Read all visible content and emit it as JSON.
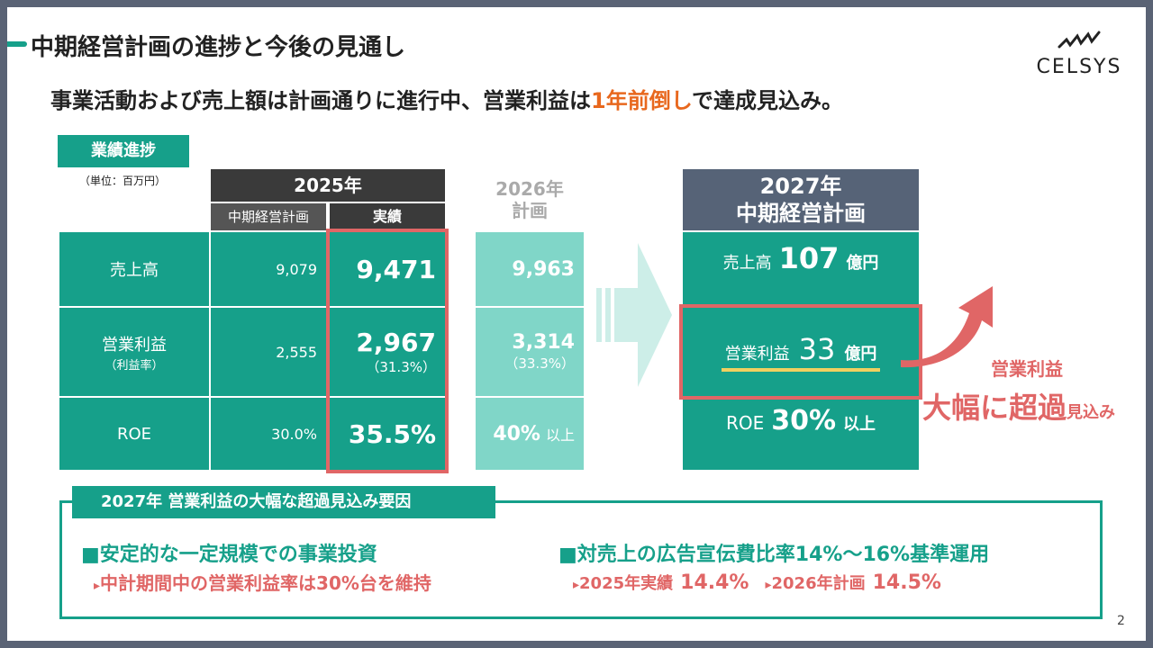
{
  "title": "中期経営計画の進捗と今後の見通し",
  "logo": "CELSYS",
  "subtitle": {
    "before": "事業活動および売上額は計画通りに進行中、営業利益は",
    "highlight": "1年前倒し",
    "after": "で達成見込み。"
  },
  "performance": {
    "label": "業績進捗",
    "unit": "（単位：百万円）",
    "year_2025": "2025年",
    "col_plan": "中期経営計画",
    "col_actual": "実績",
    "year_2026_line1": "2026年",
    "year_2026_line2": "計画",
    "rows": [
      {
        "label": "売上高",
        "sub": "",
        "plan": "9,079",
        "actual": "9,471",
        "actual_sub": "",
        "plan2026": "9,963",
        "plan2026_sub": ""
      },
      {
        "label": "営業利益",
        "sub": "（利益率）",
        "plan": "2,555",
        "actual": "2,967",
        "actual_sub": "（31.3%）",
        "plan2026": "3,314",
        "plan2026_sub": "（33.3%）"
      },
      {
        "label": "ROE",
        "sub": "",
        "plan": "30.0%",
        "actual": "35.5%",
        "actual_sub": "",
        "plan2026": "40%",
        "plan2026_suffix": "以上"
      }
    ]
  },
  "plan2027": {
    "header_line1": "2027年",
    "header_line2": "中期経営計画",
    "sales_label": "売上高",
    "sales_value": "107",
    "sales_unit": "億円",
    "op_label": "営業利益",
    "op_value": "33",
    "op_unit": "億円",
    "roe_label": "ROE",
    "roe_value": "30%",
    "roe_suffix": "以上"
  },
  "callout": {
    "line1": "営業利益",
    "line2": "大幅に超過",
    "line2_small": "見込み"
  },
  "factors": {
    "label": "2027年 営業利益の大幅な超過見込み要因",
    "left_head": "■安定的な一定規模での事業投資",
    "left_sub": "中計期間中の営業利益率は30%台を維持",
    "right_head": "■対売上の広告宣伝費比率14%～16%基準運用",
    "right_sub1_label": "2025年実績",
    "right_sub1_value": "14.4%",
    "right_sub2_label": "2026年計画",
    "right_sub2_value": "14.5%"
  },
  "page_number": "2",
  "colors": {
    "teal": "#16a08a",
    "light_teal": "#80d6c8",
    "red": "#e06666",
    "orange": "#e8681e",
    "navy": "#566377",
    "dark": "#3a3a3a"
  }
}
